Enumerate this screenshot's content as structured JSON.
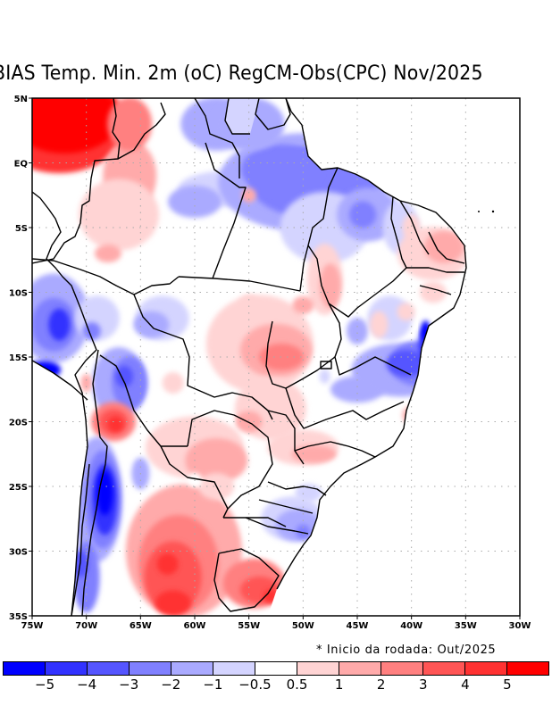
{
  "title": "BIAS Temp. Min. 2m (oC) RegCM-Obs(CPC) Nov/2025",
  "footnote": "* Inicio da rodada: Out/2025",
  "map": {
    "region": "Brazil / South America",
    "variable": "Minimum 2m temperature bias",
    "units": "oC",
    "model": "RegCM",
    "observation": "CPC",
    "target_month": "Nov/2025",
    "lon_range": [
      -75,
      -30
    ],
    "lat_range": [
      -35,
      5
    ],
    "lon_ticks": [
      {
        "value": -75,
        "label": "75W"
      },
      {
        "value": -70,
        "label": "70W"
      },
      {
        "value": -65,
        "label": "65W"
      },
      {
        "value": -60,
        "label": "60W"
      },
      {
        "value": -55,
        "label": "55W"
      },
      {
        "value": -50,
        "label": "50W"
      },
      {
        "value": -45,
        "label": "45W"
      },
      {
        "value": -40,
        "label": "40W"
      },
      {
        "value": -35,
        "label": "35W"
      },
      {
        "value": -30,
        "label": "30W"
      }
    ],
    "lat_ticks": [
      {
        "value": 5,
        "label": "5N"
      },
      {
        "value": 0,
        "label": "EQ"
      },
      {
        "value": -5,
        "label": "5S"
      },
      {
        "value": -10,
        "label": "10S"
      },
      {
        "value": -15,
        "label": "15S"
      },
      {
        "value": -20,
        "label": "20S"
      },
      {
        "value": -25,
        "label": "25S"
      },
      {
        "value": -30,
        "label": "30S"
      },
      {
        "value": -35,
        "label": "35S"
      }
    ],
    "gridlines": true,
    "features": [
      {
        "name": "Northwest Amazon (Colombia/Venezuela)",
        "lon": -71,
        "lat": 3,
        "bias_class": "> 5"
      },
      {
        "name": "Para / Amapa",
        "lon": -50,
        "lat": -2,
        "bias_class": "-3 to -2"
      },
      {
        "name": "Central-west Bolivia/Peru",
        "lon": -72,
        "lat": -12,
        "bias_class": "-4 to -3"
      },
      {
        "name": "North Chile/Argentina",
        "lon": -67,
        "lat": -20,
        "bias_class": "4 to 5"
      },
      {
        "name": "Andes Argentina/Chile",
        "lon": -68.5,
        "lat": -26,
        "bias_class": "< -5"
      },
      {
        "name": "Central Argentina",
        "lon": -62,
        "lat": -31,
        "bias_class": "3 to 4"
      },
      {
        "name": "Goias / Mato Grosso",
        "lon": -53,
        "lat": -14.5,
        "bias_class": "2 to 3"
      },
      {
        "name": "Bahia coast",
        "lon": -39.5,
        "lat": -15,
        "bias_class": "-4 to -3"
      },
      {
        "name": "Rio Grande do Norte / Paraiba",
        "lon": -37,
        "lat": -6.5,
        "bias_class": "1 to 2"
      },
      {
        "name": "Uruguay / Rio Grande do Sul",
        "lon": -55,
        "lat": -33,
        "bias_class": "3 to 4"
      },
      {
        "name": "Santa Catarina / Parana",
        "lon": -51,
        "lat": -27,
        "bias_class": "-2 to -1"
      }
    ]
  },
  "colorbar": {
    "colors": [
      "#0000ff",
      "#3232ff",
      "#5555ff",
      "#8080ff",
      "#aaaaff",
      "#d4d4ff",
      "#ffffff",
      "#ffd4d4",
      "#ffaaaa",
      "#ff8080",
      "#ff5555",
      "#ff3232",
      "#ff0000"
    ],
    "labels": [
      "-5",
      "-4",
      "-3",
      "-2",
      "-1",
      "-0.5",
      "0.5",
      "1",
      "2",
      "3",
      "4",
      "5"
    ]
  }
}
